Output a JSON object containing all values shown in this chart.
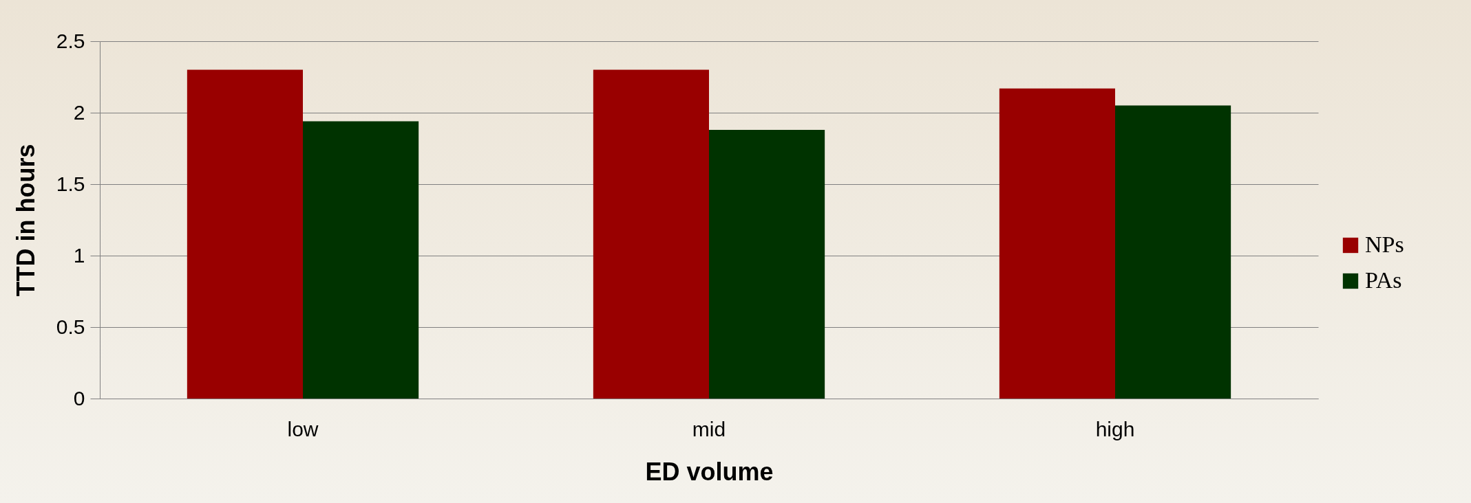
{
  "chart_data": {
    "type": "bar",
    "xlabel": "ED volume",
    "ylabel": "TTD in hours",
    "categories": [
      "low",
      "mid",
      "high"
    ],
    "series": [
      {
        "name": "NPs",
        "color": "#990000",
        "values": [
          2.3,
          2.3,
          2.17
        ]
      },
      {
        "name": "PAs",
        "color": "#003300",
        "values": [
          1.94,
          1.88,
          2.05
        ]
      }
    ],
    "ylim": [
      0,
      2.5
    ],
    "yticks": [
      0,
      0.5,
      1,
      1.5,
      2,
      2.5
    ],
    "grid": "y",
    "legend": "right"
  }
}
